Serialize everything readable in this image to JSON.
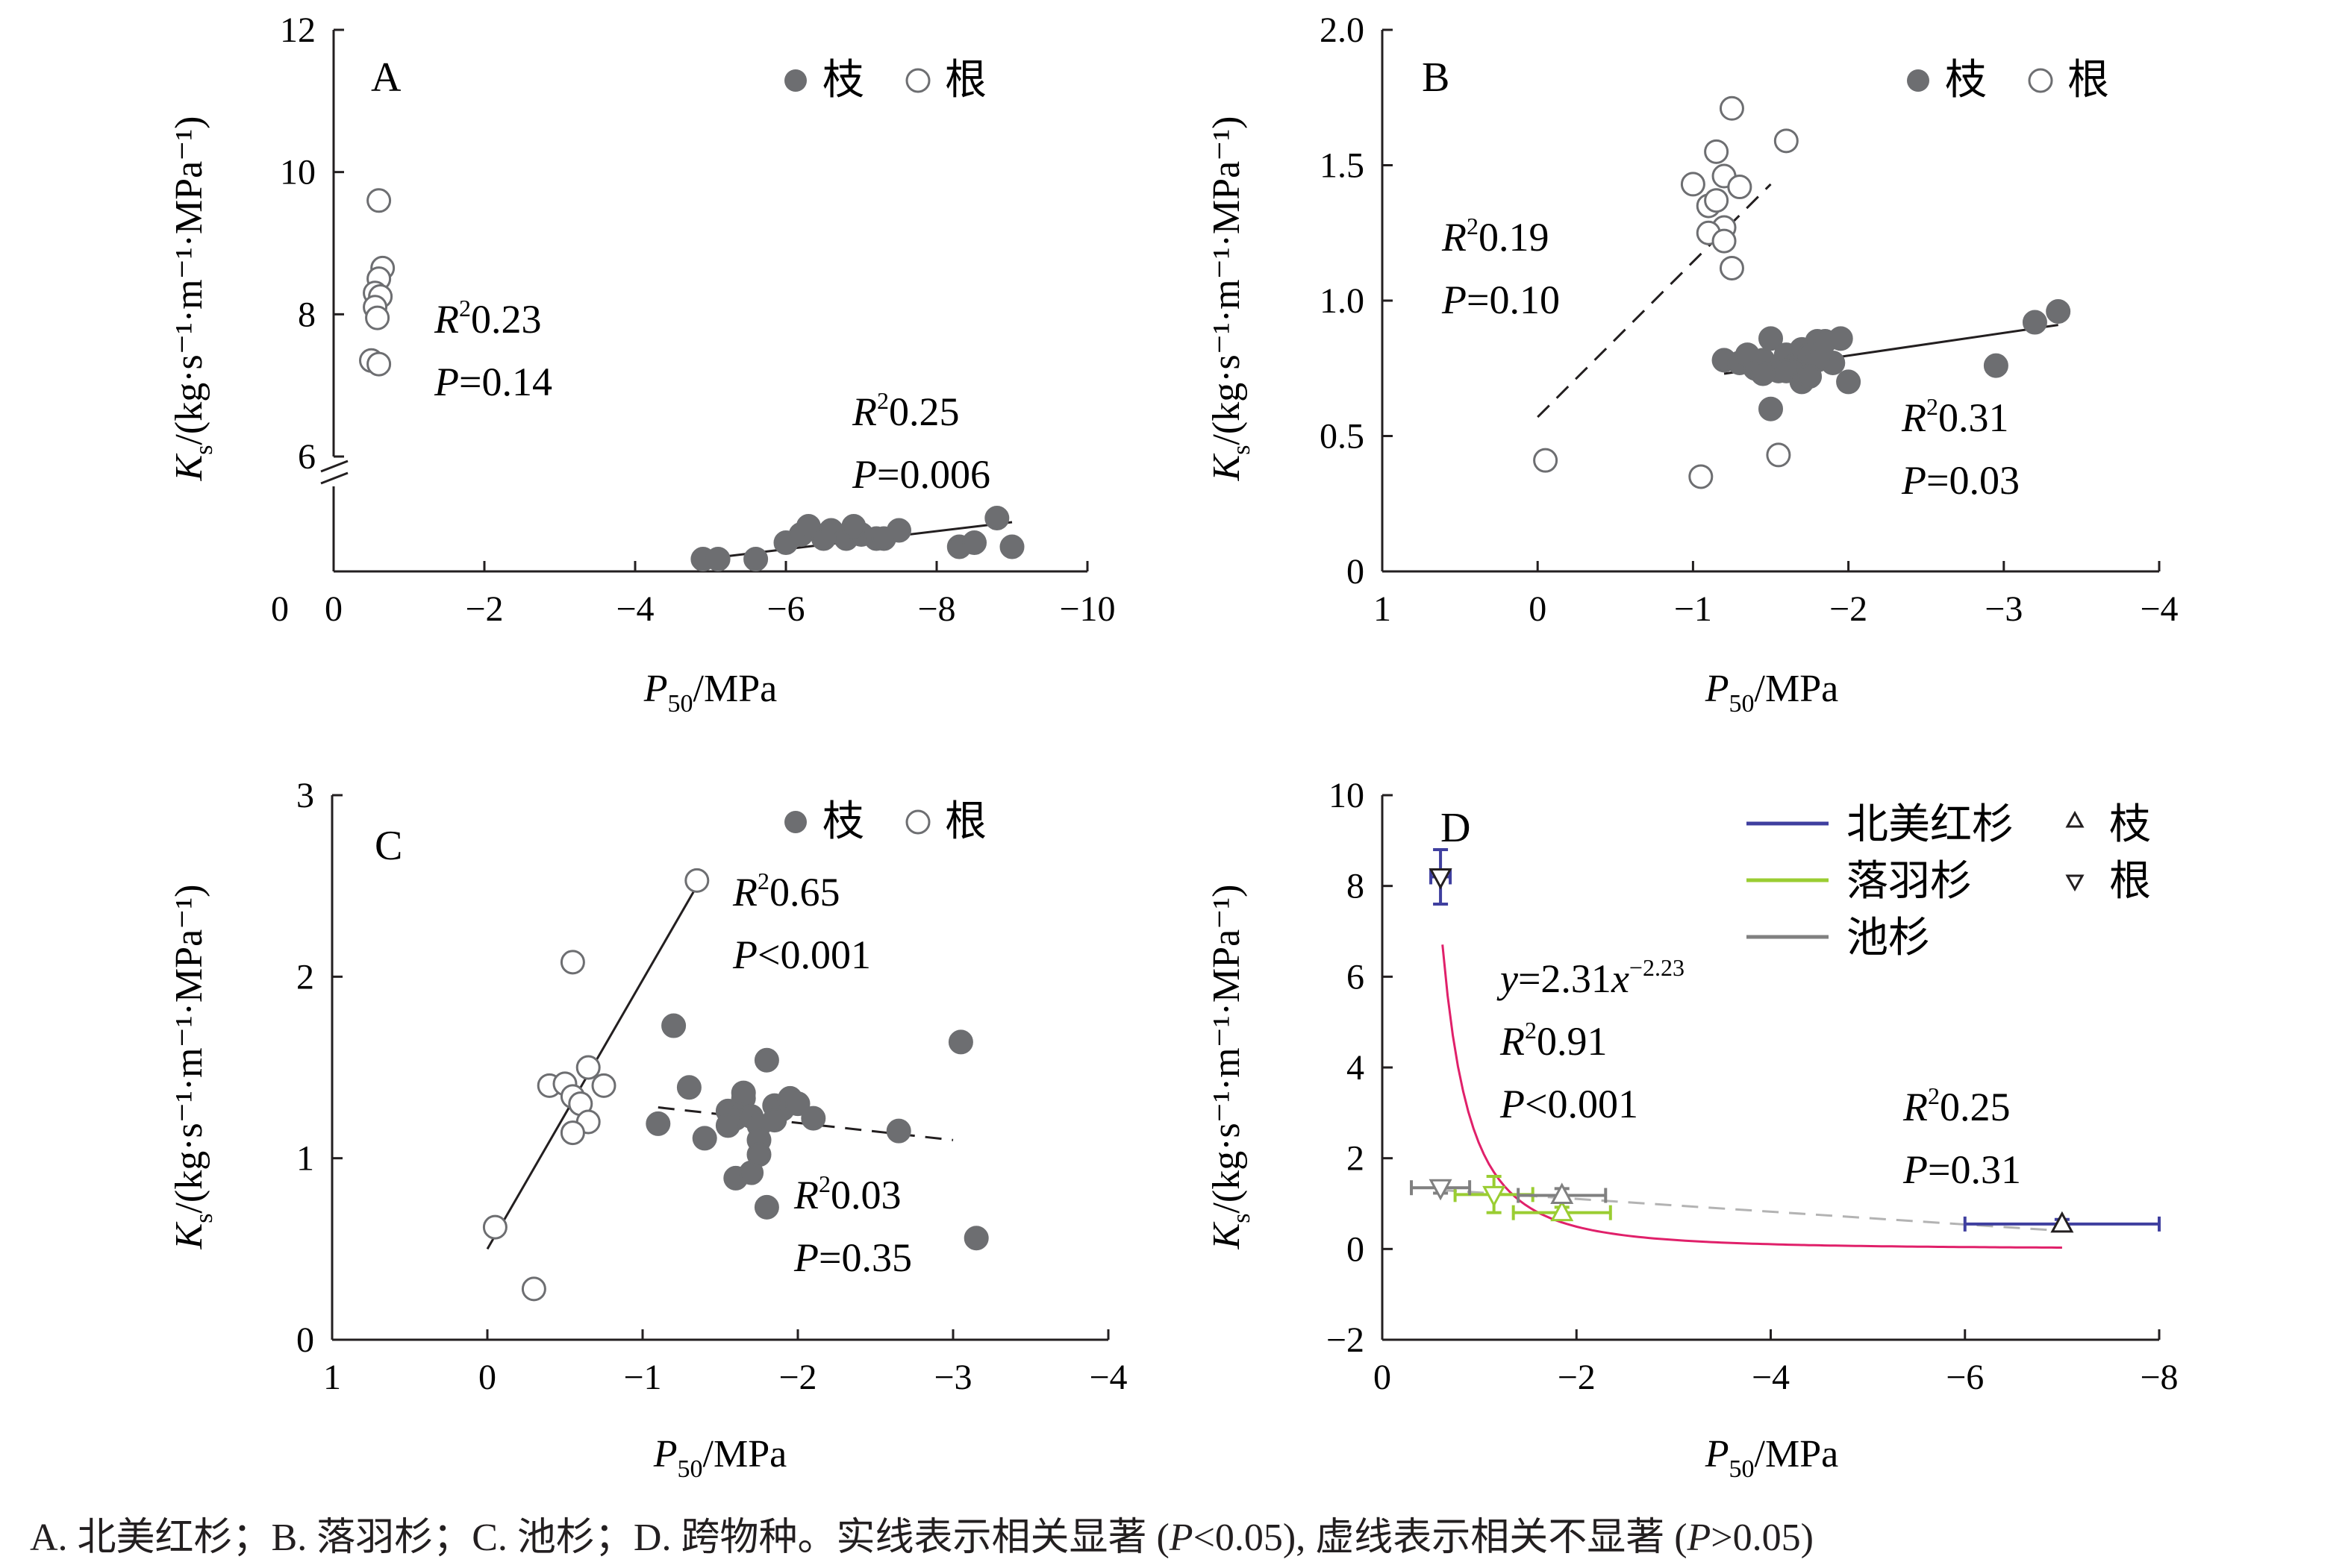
{
  "caption": {
    "text_plain": "A. 北美红杉；B. 落羽杉；C. 池杉；D. 跨物种。实线表示相关显著 (",
    "cond1": "P",
    "op1": "<0.05),  虚线表示相关不显著 (",
    "cond2": "P",
    "op2": ">0.05)"
  },
  "legend": {
    "branch": "枝",
    "root": "根"
  },
  "ylabel": {
    "main": "K",
    "sub": "s",
    "unit": "/(kg·s⁻¹·m⁻¹·MPa⁻¹)"
  },
  "xlabel": {
    "main": "P",
    "sub": "50",
    "unit": "/MPa"
  },
  "colors": {
    "branch_fill": "#6d6e71",
    "species_sequoia": "#3f3f9f",
    "species_taxodium": "#9acd32",
    "species_ascendens": "#808080",
    "fit_curve": "#e0206a"
  },
  "chart_data": [
    {
      "type": "scatter",
      "panel": "A",
      "xlim": [
        0,
        -10
      ],
      "ylim": [
        4.3,
        12
      ],
      "broken_axis": true,
      "xticks": [
        "0",
        "−2",
        "−4",
        "−6",
        "−8",
        "−10"
      ],
      "yticks": [
        "6",
        "8",
        "10",
        "12"
      ],
      "series": [
        {
          "name": "枝",
          "marker": "filled",
          "x": [
            -4.9,
            -5.1,
            -5.6,
            -6.0,
            -6.2,
            -6.3,
            -6.5,
            -6.6,
            -6.8,
            -7.0,
            -7.2,
            -7.5,
            -8.3,
            -8.5,
            -8.8,
            -9.0,
            -6.9,
            -7.3
          ],
          "y": [
            4.45,
            4.45,
            4.45,
            4.65,
            4.75,
            4.85,
            4.7,
            4.8,
            4.7,
            4.75,
            4.7,
            4.8,
            4.6,
            4.65,
            4.95,
            4.6,
            4.85,
            4.7
          ]
        },
        {
          "name": "根",
          "marker": "open",
          "x": [
            -0.6,
            -0.65,
            -0.6,
            -0.55,
            -0.62,
            -0.55,
            -0.58,
            -0.5,
            -0.6
          ],
          "y": [
            9.6,
            8.65,
            8.5,
            8.3,
            8.25,
            8.1,
            7.95,
            7.35,
            7.3
          ]
        }
      ],
      "fits": [
        {
          "series": "枝",
          "style": "solid",
          "x": [
            -4.9,
            -9.0
          ],
          "y": [
            4.45,
            4.9
          ]
        },
        {
          "series": "根",
          "style": "dashed",
          "x": [
            -0.55,
            -0.7
          ],
          "y": [
            8.0,
            8.8
          ]
        }
      ],
      "stats": [
        {
          "r2": "0.23",
          "p": "=0.14"
        },
        {
          "r2": "0.25",
          "p": "=0.006"
        }
      ]
    },
    {
      "type": "scatter",
      "panel": "B",
      "xlim": [
        1,
        -4
      ],
      "ylim": [
        0,
        2.0
      ],
      "xticks": [
        "1",
        "0",
        "−1",
        "−2",
        "−3",
        "−4"
      ],
      "yticks": [
        "0",
        "0.5",
        "1.0",
        "1.5",
        "2.0"
      ],
      "series": [
        {
          "name": "枝",
          "marker": "filled",
          "x": [
            -1.2,
            -1.3,
            -1.35,
            -1.4,
            -1.45,
            -1.5,
            -1.55,
            -1.6,
            -1.65,
            -1.7,
            -1.75,
            -1.8,
            -1.85,
            -1.9,
            -1.95,
            -2.0,
            -1.5,
            -1.6,
            -1.7,
            -1.8,
            -2.95,
            -3.2,
            -3.35,
            -1.45,
            -1.75
          ],
          "y": [
            0.78,
            0.77,
            0.8,
            0.75,
            0.78,
            0.86,
            0.74,
            0.8,
            0.76,
            0.82,
            0.8,
            0.85,
            0.85,
            0.77,
            0.86,
            0.7,
            0.6,
            0.74,
            0.7,
            0.78,
            0.76,
            0.92,
            0.96,
            0.73,
            0.72
          ]
        },
        {
          "name": "根",
          "marker": "open",
          "x": [
            -1.25,
            -1.15,
            -1.2,
            -1.0,
            -1.1,
            -1.15,
            -1.3,
            -1.6,
            -1.2,
            -1.1,
            -1.2,
            -1.25,
            -0.05,
            -1.05,
            -1.55
          ],
          "y": [
            1.71,
            1.55,
            1.46,
            1.43,
            1.35,
            1.37,
            1.42,
            1.59,
            1.27,
            1.25,
            1.22,
            1.12,
            0.41,
            0.35,
            0.43
          ]
        }
      ],
      "fits": [
        {
          "series": "枝",
          "style": "solid",
          "x": [
            -1.2,
            -3.35
          ],
          "y": [
            0.73,
            0.91
          ]
        },
        {
          "series": "根",
          "style": "dashed",
          "x": [
            0.0,
            -1.5
          ],
          "y": [
            0.57,
            1.43
          ]
        }
      ],
      "stats": [
        {
          "r2": "0.19",
          "p": "=0.10"
        },
        {
          "r2": "0.31",
          "p": "=0.03"
        }
      ]
    },
    {
      "type": "scatter",
      "panel": "C",
      "xlim": [
        1,
        -4
      ],
      "ylim": [
        0,
        3
      ],
      "xticks": [
        "1",
        "0",
        "−1",
        "−2",
        "−3",
        "−4"
      ],
      "yticks": [
        "0",
        "1",
        "2",
        "3"
      ],
      "series": [
        {
          "name": "枝",
          "marker": "filled",
          "x": [
            -1.2,
            -1.3,
            -1.4,
            -1.55,
            -1.6,
            -1.65,
            -1.7,
            -1.75,
            -1.8,
            -1.85,
            -1.9,
            -1.95,
            -2.0,
            -2.1,
            -1.6,
            -1.7,
            -1.8,
            -1.65,
            -1.75,
            -1.55,
            -1.75,
            -2.65,
            -3.05,
            -3.15,
            -1.1,
            -1.85
          ],
          "y": [
            1.73,
            1.39,
            1.11,
            1.26,
            1.22,
            1.33,
            1.23,
            1.18,
            1.54,
            1.29,
            1.27,
            1.33,
            1.3,
            1.22,
            0.89,
            0.92,
            0.73,
            1.36,
            1.1,
            1.18,
            1.02,
            1.15,
            1.64,
            0.56,
            1.19,
            1.21
          ]
        },
        {
          "name": "根",
          "marker": "open",
          "x": [
            -1.35,
            -0.55,
            -0.4,
            -0.5,
            -0.55,
            -0.65,
            -0.75,
            -0.6,
            -0.65,
            -0.55,
            -0.05,
            -0.3
          ],
          "y": [
            2.53,
            2.08,
            1.4,
            1.41,
            1.34,
            1.5,
            1.4,
            1.3,
            1.2,
            1.14,
            0.62,
            0.28
          ]
        }
      ],
      "fits": [
        {
          "series": "根",
          "style": "solid",
          "x": [
            0.0,
            -1.35
          ],
          "y": [
            0.5,
            2.5
          ]
        },
        {
          "series": "枝",
          "style": "dashed",
          "x": [
            -1.1,
            -3.0
          ],
          "y": [
            1.28,
            1.1
          ]
        }
      ],
      "stats": [
        {
          "r2": "0.65",
          "p": "<0.001"
        },
        {
          "r2": "0.03",
          "p": "=0.35"
        }
      ]
    },
    {
      "type": "scatter",
      "panel": "D",
      "xlim": [
        0,
        -8
      ],
      "ylim": [
        -2,
        10
      ],
      "xticks": [
        "0",
        "−2",
        "−4",
        "−6",
        "−8"
      ],
      "yticks": [
        "−2",
        "0",
        "2",
        "4",
        "6",
        "8",
        "10"
      ],
      "species": [
        "北美红杉",
        "落羽杉",
        "池杉"
      ],
      "marker_legend": [
        {
          "label": "枝",
          "marker": "up-triangle"
        },
        {
          "label": "根",
          "marker": "down-triangle"
        }
      ],
      "points": [
        {
          "species": "北美红杉",
          "organ": "根",
          "x": -0.6,
          "y": 8.2,
          "xerr": 0.1,
          "yerr": 0.6
        },
        {
          "species": "北美红杉",
          "organ": "枝",
          "x": -7.0,
          "y": 0.55,
          "xerr": 1.0,
          "yerr": 0.1
        },
        {
          "species": "落羽杉",
          "organ": "根",
          "x": -1.15,
          "y": 1.2,
          "xerr": 0.4,
          "yerr": 0.4
        },
        {
          "species": "落羽杉",
          "organ": "枝",
          "x": -1.85,
          "y": 0.8,
          "xerr": 0.5,
          "yerr": 0.12
        },
        {
          "species": "池杉",
          "organ": "根",
          "x": -0.6,
          "y": 1.35,
          "xerr": 0.3,
          "yerr": 0.12
        },
        {
          "species": "池杉",
          "organ": "枝",
          "x": -1.85,
          "y": 1.18,
          "xerr": 0.45,
          "yerr": 0.15
        }
      ],
      "fits": [
        {
          "style": "solid",
          "kind": "power",
          "a": 2.31,
          "b": -2.23,
          "x_range": [
            -0.62,
            -7.0
          ]
        },
        {
          "style": "dashed",
          "kind": "linear",
          "x": [
            -0.6,
            -7.0
          ],
          "y": [
            1.3,
            0.4
          ]
        }
      ],
      "equation": {
        "y": "y",
        "coef": "=2.31",
        "x": "x",
        "exp": "−2.23"
      },
      "stats": [
        {
          "r2": "0.91",
          "p": "<0.001"
        },
        {
          "r2": "0.25",
          "p": "=0.31"
        }
      ]
    }
  ]
}
